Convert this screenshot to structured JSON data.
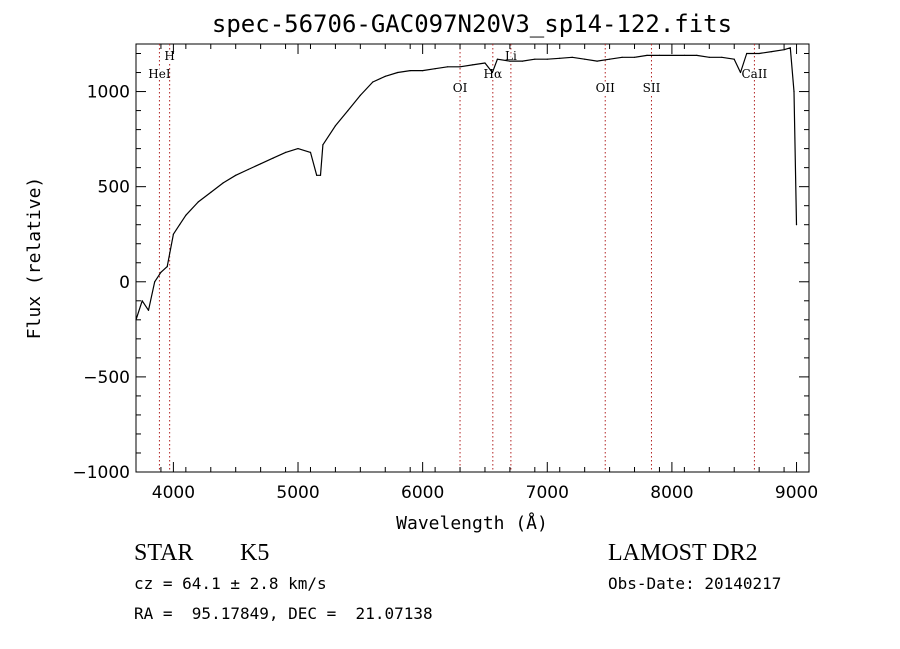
{
  "chart_data": {
    "type": "line",
    "title": "spec-56706-GAC097N20V3_sp14-122.fits",
    "xlabel": "Wavelength (Å)",
    "ylabel": "Flux (relative)",
    "xlim": [
      3700,
      9100
    ],
    "ylim": [
      -1000,
      1250
    ],
    "x_ticks": [
      4000,
      5000,
      6000,
      7000,
      8000,
      9000
    ],
    "y_ticks": [
      -1000,
      -500,
      0,
      500,
      1000
    ],
    "series": [
      {
        "x": [
          3700,
          3750,
          3800,
          3850,
          3900,
          3950,
          4000,
          4050,
          4100,
          4200,
          4300,
          4400,
          4500,
          4600,
          4700,
          4800,
          4900,
          5000,
          5100,
          5150,
          5180,
          5200,
          5300,
          5400,
          5500,
          5600,
          5700,
          5800,
          5900,
          6000,
          6100,
          6200,
          6300,
          6400,
          6500,
          6560,
          6600,
          6700,
          6800,
          6900,
          7000,
          7100,
          7200,
          7300,
          7400,
          7500,
          7600,
          7700,
          7800,
          7900,
          8000,
          8100,
          8200,
          8300,
          8400,
          8500,
          8550,
          8600,
          8700,
          8800,
          8900,
          8950,
          8980,
          9000
        ],
        "y": [
          -200,
          -100,
          -150,
          0,
          50,
          80,
          250,
          300,
          350,
          420,
          470,
          520,
          560,
          590,
          620,
          650,
          680,
          700,
          680,
          560,
          560,
          720,
          820,
          900,
          980,
          1050,
          1080,
          1100,
          1110,
          1110,
          1120,
          1130,
          1130,
          1140,
          1150,
          1100,
          1170,
          1160,
          1160,
          1170,
          1170,
          1175,
          1180,
          1170,
          1160,
          1170,
          1180,
          1180,
          1190,
          1190,
          1190,
          1190,
          1190,
          1180,
          1180,
          1170,
          1100,
          1200,
          1200,
          1210,
          1220,
          1230,
          1000,
          300
        ]
      }
    ],
    "lines": [
      {
        "label": "HeI",
        "x": 3888
      },
      {
        "label": "H",
        "x": 3970
      },
      {
        "label": "OI",
        "x": 6300
      },
      {
        "label": "Hα",
        "x": 6563
      },
      {
        "label": "Li",
        "x": 6708
      },
      {
        "label": "OII",
        "x": 7465
      },
      {
        "label": "SII",
        "x": 7836
      },
      {
        "label": "CaII",
        "x": 8662
      }
    ],
    "line_color": "#b22222",
    "grid": false
  },
  "info": {
    "class": "STAR",
    "subclass": "K5",
    "survey": "LAMOST DR2",
    "cz": "cz = 64.1 ± 2.8 km/s",
    "obs_date": "Obs-Date: 20140217",
    "coords": "RA =  95.17849, DEC =  21.07138"
  }
}
